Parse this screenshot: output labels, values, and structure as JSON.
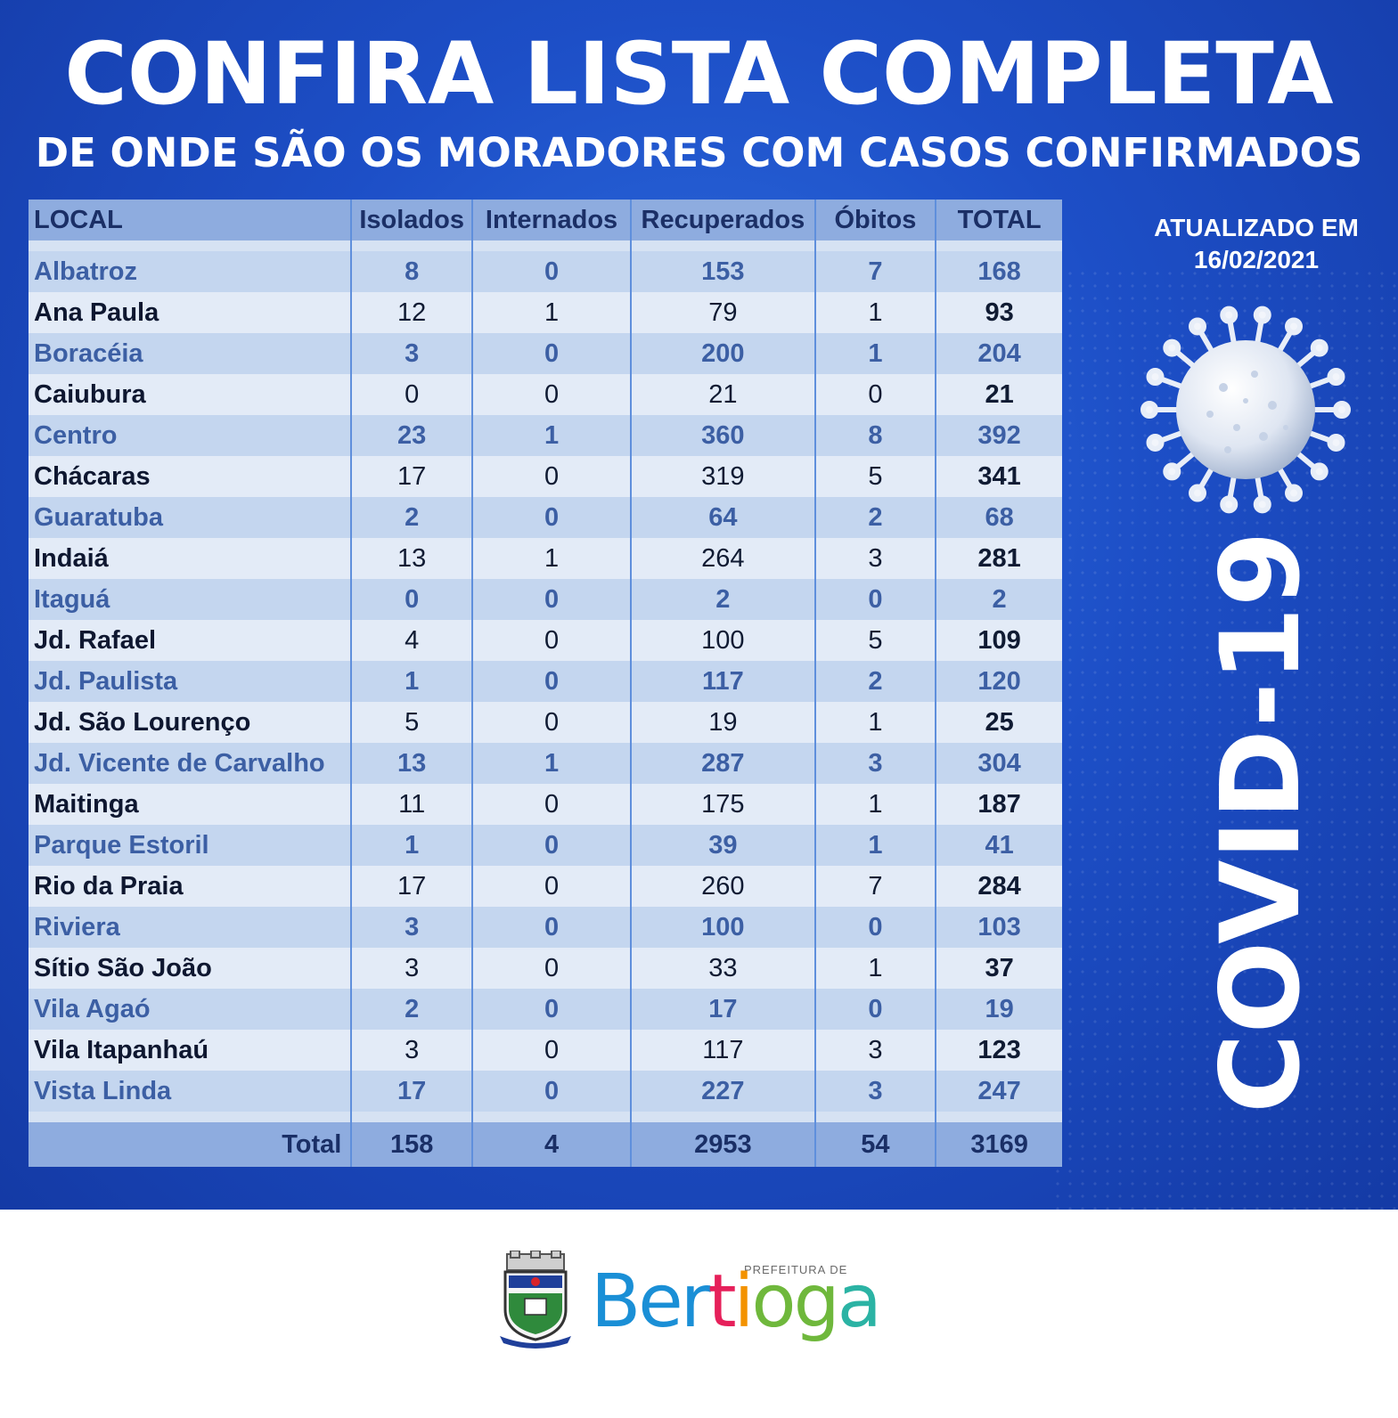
{
  "header": {
    "title": "CONFIRA LISTA COMPLETA",
    "subtitle": "DE ONDE SÃO OS MORADORES COM CASOS CONFIRMADOS"
  },
  "updated": {
    "line1": "ATUALIZADO EM",
    "line2": "16/02/2021"
  },
  "side_label": "COVID-19",
  "table": {
    "columns": [
      "LOCAL",
      "Isolados",
      "Internados",
      "Recuperados",
      "Óbitos",
      "TOTAL"
    ],
    "rows": [
      [
        "Albatroz",
        "8",
        "0",
        "153",
        "7",
        "168"
      ],
      [
        "Ana Paula",
        "12",
        "1",
        "79",
        "1",
        "93"
      ],
      [
        "Boracéia",
        "3",
        "0",
        "200",
        "1",
        "204"
      ],
      [
        "Caiubura",
        "0",
        "0",
        "21",
        "0",
        "21"
      ],
      [
        "Centro",
        "23",
        "1",
        "360",
        "8",
        "392"
      ],
      [
        "Chácaras",
        "17",
        "0",
        "319",
        "5",
        "341"
      ],
      [
        "Guaratuba",
        "2",
        "0",
        "64",
        "2",
        "68"
      ],
      [
        "Indaiá",
        "13",
        "1",
        "264",
        "3",
        "281"
      ],
      [
        "Itaguá",
        "0",
        "0",
        "2",
        "0",
        "2"
      ],
      [
        "Jd. Rafael",
        "4",
        "0",
        "100",
        "5",
        "109"
      ],
      [
        "Jd. Paulista",
        "1",
        "0",
        "117",
        "2",
        "120"
      ],
      [
        "Jd. São Lourenço",
        "5",
        "0",
        "19",
        "1",
        "25"
      ],
      [
        "Jd. Vicente de Carvalho",
        "13",
        "1",
        "287",
        "3",
        "304"
      ],
      [
        "Maitinga",
        "11",
        "0",
        "175",
        "1",
        "187"
      ],
      [
        "Parque Estoril",
        "1",
        "0",
        "39",
        "1",
        "41"
      ],
      [
        "Rio da Praia",
        "17",
        "0",
        "260",
        "7",
        "284"
      ],
      [
        "Riviera",
        "3",
        "0",
        "100",
        "0",
        "103"
      ],
      [
        "Sítio São João",
        "3",
        "0",
        "33",
        "1",
        "37"
      ],
      [
        "Vila Agaó",
        "2",
        "0",
        "17",
        "0",
        "19"
      ],
      [
        "Vila Itapanhaú",
        "3",
        "0",
        "117",
        "3",
        "123"
      ],
      [
        "Vista Linda",
        "17",
        "0",
        "227",
        "3",
        "247"
      ]
    ],
    "total": [
      "Total",
      "158",
      "4",
      "2953",
      "54",
      "3169"
    ]
  },
  "footer": {
    "prefeitura": "PREFEITURA DE",
    "brand": "Bertioga",
    "brand_colors": [
      "#1a8fd6",
      "#e6205a",
      "#f39200",
      "#6fb83c",
      "#2bb3a4"
    ]
  }
}
